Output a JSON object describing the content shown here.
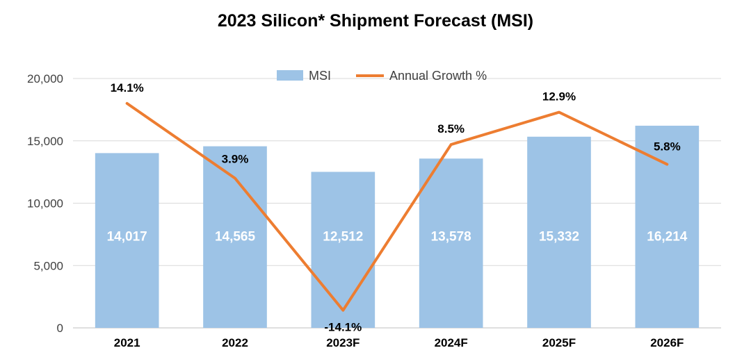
{
  "chart_data": {
    "type": "bar",
    "title": "2023 Silicon* Shipment Forecast (MSI)",
    "categories": [
      "2021",
      "2022",
      "2023F",
      "2024F",
      "2025F",
      "2026F"
    ],
    "series": [
      {
        "name": "MSI",
        "type": "bar",
        "values": [
          14017,
          14565,
          12512,
          13578,
          15332,
          16214
        ],
        "labels": [
          "14,017",
          "14,565",
          "12,512",
          "13,578",
          "15,332",
          "16,214"
        ],
        "color": "#9DC3E6"
      },
      {
        "name": "Annual Growth %",
        "type": "line",
        "values": [
          14.1,
          3.9,
          -14.1,
          8.5,
          12.9,
          5.8
        ],
        "labels": [
          "14.1%",
          "3.9%",
          "-14.1%",
          "8.5%",
          "12.9%",
          "5.8%"
        ],
        "color": "#ED7D31",
        "axis": "secondary",
        "axis_range": [
          -16.5,
          17.5
        ]
      }
    ],
    "ylim": [
      0,
      20000
    ],
    "yticks": [
      0,
      5000,
      10000,
      15000,
      20000
    ],
    "ytick_labels": [
      "0",
      "5,000",
      "10,000",
      "15,000",
      "20,000"
    ],
    "grid": true,
    "legend_position": "top-center",
    "colors": {
      "grid": "#D9D9D9",
      "axis": "#BFBFBF"
    }
  }
}
